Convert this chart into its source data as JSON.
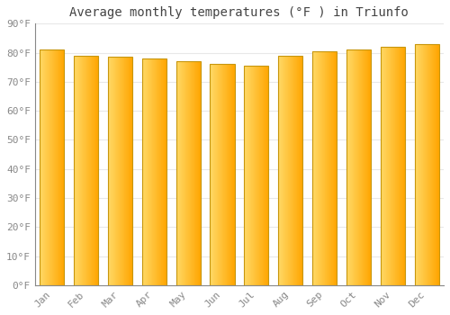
{
  "title": "Average monthly temperatures (°F ) in Triunfo",
  "months": [
    "Jan",
    "Feb",
    "Mar",
    "Apr",
    "May",
    "Jun",
    "Jul",
    "Aug",
    "Sep",
    "Oct",
    "Nov",
    "Dec"
  ],
  "values": [
    81,
    79,
    78.5,
    78,
    77,
    76,
    75.5,
    79,
    80.5,
    81,
    82,
    83
  ],
  "ylim": [
    0,
    90
  ],
  "yticks": [
    0,
    10,
    20,
    30,
    40,
    50,
    60,
    70,
    80,
    90
  ],
  "ytick_labels": [
    "0°F",
    "10°F",
    "20°F",
    "30°F",
    "40°F",
    "50°F",
    "60°F",
    "70°F",
    "80°F",
    "90°F"
  ],
  "background_color": "#ffffff",
  "grid_color": "#e8e8e8",
  "title_fontsize": 10,
  "tick_fontsize": 8,
  "bar_width": 0.72,
  "bar_color_light": "#FFD966",
  "bar_color_dark": "#FFA500",
  "bar_edge_color": "#C8960C",
  "bar_edge_width": 0.8
}
